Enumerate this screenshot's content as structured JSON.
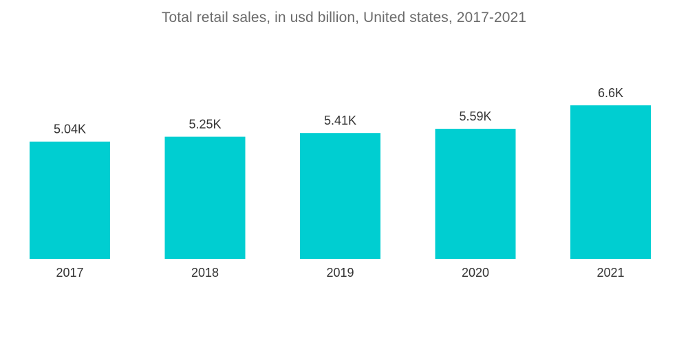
{
  "chart_data": {
    "type": "bar",
    "title": "Total retail sales, in usd billion, United states, 2017-2021",
    "categories": [
      "2017",
      "2018",
      "2019",
      "2020",
      "2021"
    ],
    "values": [
      5040,
      5250,
      5410,
      5590,
      6600
    ],
    "data_labels": [
      "5.04K",
      "5.25K",
      "5.41K",
      "5.59K",
      "6.6K"
    ],
    "xlabel": "",
    "ylabel": "",
    "ylim": [
      0,
      6600
    ],
    "grid": false,
    "legend": "none",
    "bar_color": "#00ced1"
  }
}
